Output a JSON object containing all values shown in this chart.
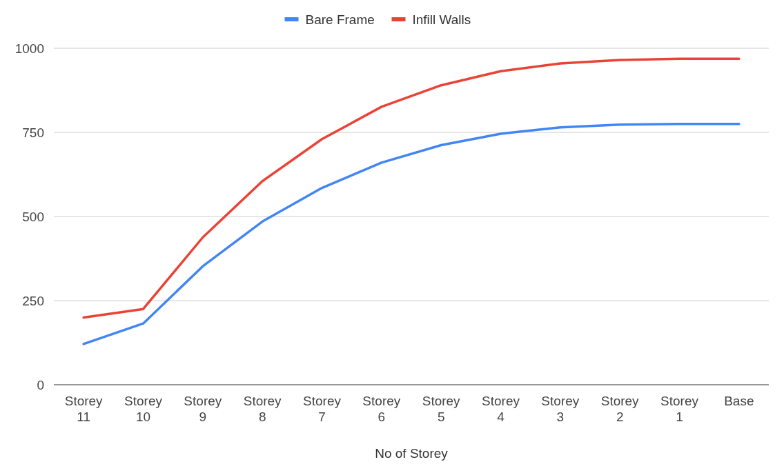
{
  "chart_data": {
    "type": "line",
    "xlabel": "No of Storey",
    "categories": [
      "Storey 11",
      "Storey 10",
      "Storey 9",
      "Storey 8",
      "Storey 7",
      "Storey 6",
      "Storey 5",
      "Storey 4",
      "Storey 3",
      "Storey 2",
      "Storey 1",
      "Base"
    ],
    "series": [
      {
        "name": "Bare Frame",
        "color": "#4285f4",
        "values": [
          121,
          182,
          352,
          485,
          585,
          660,
          712,
          746,
          765,
          773,
          775,
          775
        ]
      },
      {
        "name": "Infill Walls",
        "color": "#ea4335",
        "values": [
          200,
          225,
          438,
          605,
          730,
          826,
          890,
          932,
          955,
          965,
          969,
          969
        ]
      }
    ],
    "ylim": [
      0,
      1000
    ],
    "yticks": [
      0,
      250,
      500,
      750,
      1000
    ],
    "grid": "y",
    "legend": "top",
    "marker": "none",
    "line_style": "solid"
  }
}
